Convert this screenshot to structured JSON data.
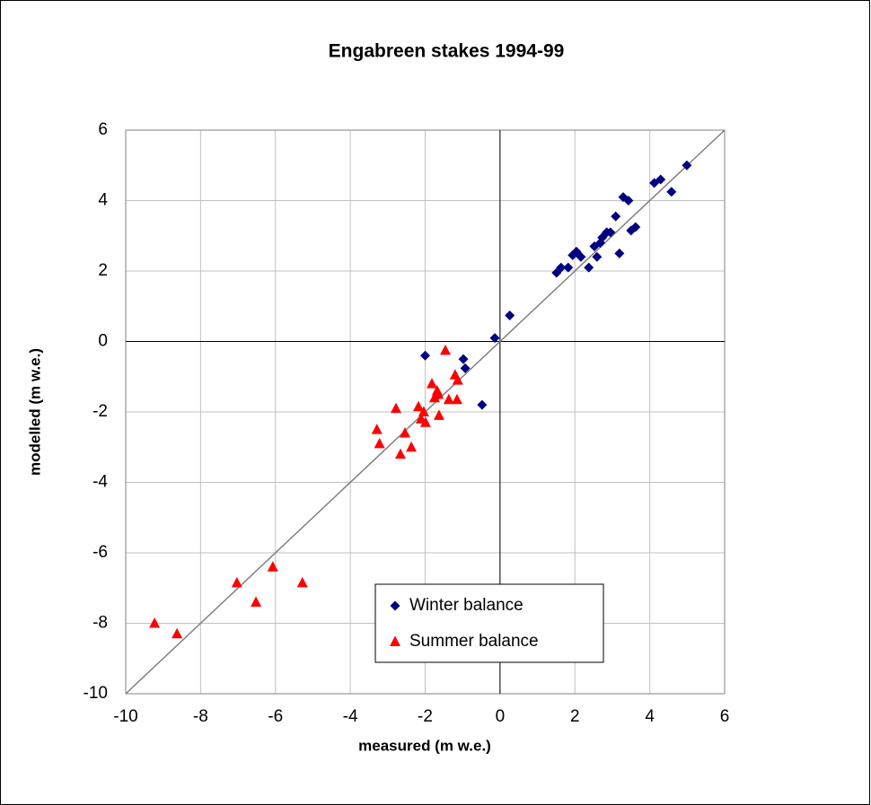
{
  "chart_data": {
    "type": "scatter",
    "title": "Engabreen stakes 1994-99",
    "x_label": "measured (m w.e.)",
    "y_label": "modelled (m w.e.)",
    "xlim": [
      -10,
      6
    ],
    "ylim": [
      -10,
      6
    ],
    "xticks": [
      -10,
      -8,
      -6,
      -4,
      -2,
      0,
      2,
      4,
      6
    ],
    "yticks": [
      -10,
      -8,
      -6,
      -4,
      -2,
      0,
      2,
      4,
      6
    ],
    "grid": true,
    "legend": "lower right",
    "reference_line": "1:1",
    "series": [
      {
        "name": "Winter balance",
        "color": "#000080",
        "marker": "diamond",
        "x": [
          -0.14,
          0.26,
          -0.98,
          -0.93,
          -2.0,
          -0.48,
          1.51,
          1.63,
          1.82,
          1.94,
          2.04,
          2.16,
          2.37,
          2.52,
          2.59,
          2.68,
          2.73,
          2.85,
          2.95,
          3.09,
          3.19,
          3.29,
          3.43,
          3.5,
          3.62,
          4.12,
          4.29,
          4.58,
          4.99
        ],
        "values": [
          0.1,
          0.74,
          -0.5,
          -0.76,
          -0.4,
          -1.8,
          1.95,
          2.1,
          2.1,
          2.45,
          2.55,
          2.4,
          2.1,
          2.7,
          2.4,
          2.8,
          2.95,
          3.1,
          3.1,
          3.55,
          2.5,
          4.1,
          4.0,
          3.15,
          3.25,
          4.5,
          4.6,
          4.25,
          5.0
        ]
      },
      {
        "name": "Summer balance",
        "color": "#ff0000",
        "marker": "triangle",
        "x": [
          -9.23,
          -8.63,
          -7.03,
          -6.52,
          -6.07,
          -5.28,
          -3.29,
          -3.22,
          -2.78,
          -2.66,
          -2.54,
          -2.37,
          -2.18,
          -2.11,
          -2.04,
          -1.99,
          -1.82,
          -1.75,
          -1.68,
          -1.65,
          -1.63,
          -1.46,
          -1.37,
          -1.2,
          -1.15,
          -1.13
        ],
        "values": [
          -8.0,
          -8.3,
          -6.85,
          -7.4,
          -6.4,
          -6.85,
          -2.5,
          -2.9,
          -1.9,
          -3.2,
          -2.6,
          -3.0,
          -1.85,
          -2.2,
          -2.0,
          -2.3,
          -1.2,
          -1.6,
          -1.4,
          -1.5,
          -2.1,
          -0.25,
          -1.65,
          -0.95,
          -1.65,
          -1.1
        ]
      }
    ]
  }
}
